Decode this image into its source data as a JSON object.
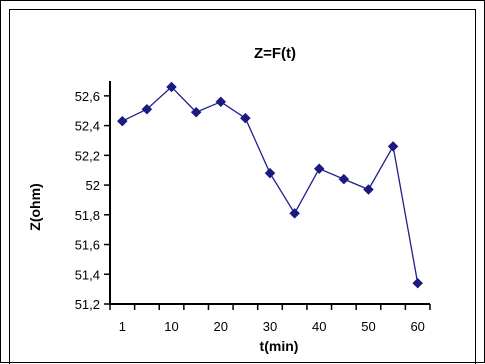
{
  "chart_data": {
    "type": "line",
    "title": "Z=F(t)",
    "xlabel": "t(min)",
    "ylabel": "Z(ohm)",
    "x_tick_labels": [
      "1",
      "10",
      "20",
      "30",
      "40",
      "50",
      "60"
    ],
    "y_tick_labels": [
      "51,2",
      "51,4",
      "51,6",
      "51,8",
      "52",
      "52,2",
      "52,4",
      "52,6"
    ],
    "ylim": [
      51.2,
      52.7
    ],
    "series": [
      {
        "x": [
          1,
          5,
          10,
          15,
          20,
          25,
          30,
          35,
          40,
          45,
          50,
          55,
          60
        ],
        "values": [
          52.43,
          52.51,
          52.66,
          52.49,
          52.56,
          52.45,
          52.08,
          51.81,
          52.11,
          52.04,
          51.97,
          52.26,
          51.34
        ]
      }
    ],
    "colors": {
      "line": "#1f1f8f",
      "marker": "#1a1a80",
      "axis": "#000000"
    },
    "grid": false,
    "legend": "none"
  }
}
